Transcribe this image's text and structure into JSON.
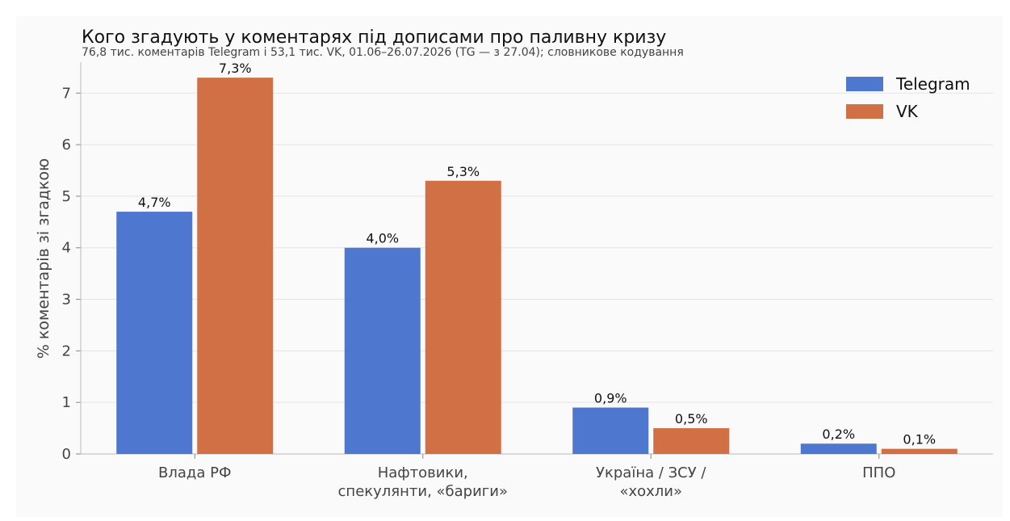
{
  "chart_data": {
    "type": "bar",
    "title": "Кого згадують у коментарях під дописами про паливну кризу",
    "subtitle": "76,8 тис. коментарів Telegram і 53,1 тис. VK, 01.06–26.07.2026 (TG — з 27.04); словникове кодування",
    "ylabel": "% коментарів зі згадкою",
    "xlabel": "",
    "ylim": [
      0,
      7.6
    ],
    "yticks": [
      0,
      1,
      2,
      3,
      4,
      5,
      6,
      7
    ],
    "grid": true,
    "legend_position": "top-right",
    "categories": [
      [
        "Влада РФ"
      ],
      [
        "Нафтовики,",
        "спекулянти, «бариги»"
      ],
      [
        "Україна / ЗСУ /",
        "«хохли»"
      ],
      [
        "ППО"
      ]
    ],
    "series": [
      {
        "name": "Telegram",
        "color": "#4e77cf",
        "values": [
          4.7,
          4.0,
          0.9,
          0.2
        ],
        "labels": [
          "4,7%",
          "4,0%",
          "0,9%",
          "0,2%"
        ]
      },
      {
        "name": "VK",
        "color": "#d27045",
        "values": [
          7.3,
          5.3,
          0.5,
          0.1
        ],
        "labels": [
          "7,3%",
          "5,3%",
          "0,5%",
          "0,1%"
        ]
      }
    ]
  }
}
